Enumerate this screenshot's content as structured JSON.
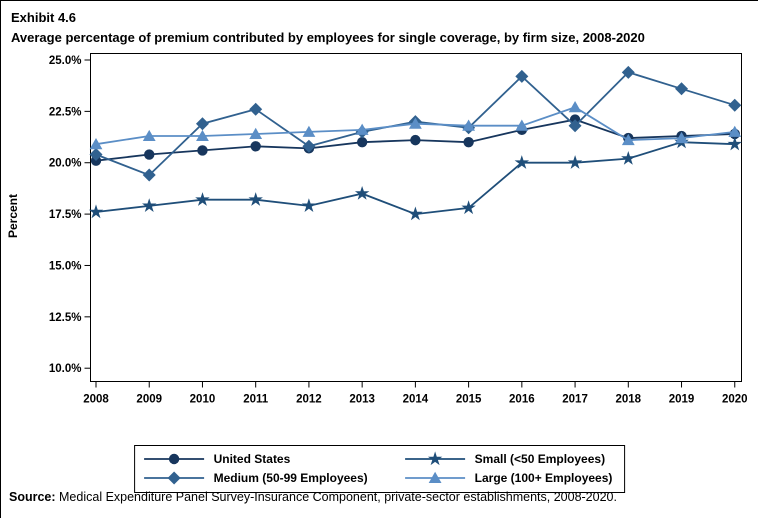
{
  "title": {
    "exhibit": "Exhibit 4.6",
    "main": "Average percentage of premium contributed by employees for single coverage, by firm size, 2008-2020"
  },
  "source": {
    "label": "Source:",
    "text": " Medical Expenditure Panel Survey-Insurance Component, private-sector establishments, 2008-2020."
  },
  "chart_data": {
    "type": "line",
    "x": [
      2008,
      2009,
      2010,
      2011,
      2012,
      2013,
      2014,
      2015,
      2016,
      2017,
      2018,
      2019,
      2020
    ],
    "ylabel": "Percent",
    "ylim": [
      10.0,
      25.0
    ],
    "yticks": [
      "10.0%",
      "12.5%",
      "15.0%",
      "17.5%",
      "20.0%",
      "22.5%",
      "25.0%"
    ],
    "grid": false,
    "legend_position": "bottom",
    "series": [
      {
        "name": "United States",
        "marker": "circle",
        "color": "#17365d",
        "values": [
          20.1,
          20.4,
          20.6,
          20.8,
          20.7,
          21.0,
          21.1,
          21.0,
          21.6,
          22.1,
          21.2,
          21.3,
          21.4
        ]
      },
      {
        "name": "Small (<50 Employees)",
        "marker": "star",
        "color": "#1f4e79",
        "values": [
          17.6,
          17.9,
          18.2,
          18.2,
          17.9,
          18.5,
          17.5,
          17.8,
          20.0,
          20.0,
          20.2,
          21.0,
          20.9
        ]
      },
      {
        "name": "Medium (50-99 Employees)",
        "marker": "diamond",
        "color": "#31618f",
        "values": [
          20.4,
          19.4,
          21.9,
          22.6,
          20.8,
          21.5,
          22.0,
          21.7,
          24.2,
          21.8,
          24.4,
          23.6,
          22.8
        ]
      },
      {
        "name": "Large (100+ Employees)",
        "marker": "triangle",
        "color": "#5b8ec6",
        "values": [
          20.9,
          21.3,
          21.3,
          21.4,
          21.5,
          21.6,
          21.9,
          21.8,
          21.8,
          22.7,
          21.1,
          21.2,
          21.5
        ]
      }
    ]
  }
}
